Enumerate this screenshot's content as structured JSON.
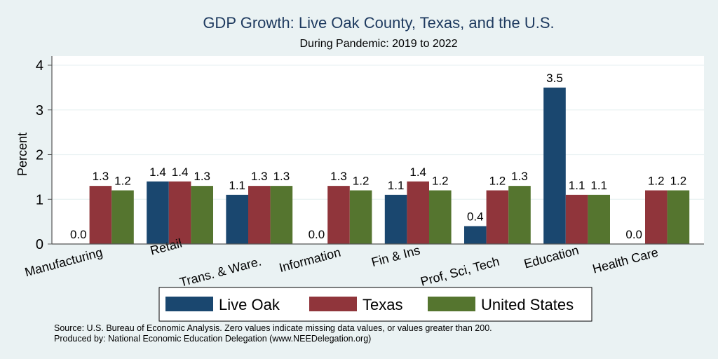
{
  "chart_data": {
    "type": "bar",
    "title": "GDP Growth: Live Oak County, Texas, and the U.S.",
    "subtitle": "During Pandemic: 2019 to 2022",
    "ylabel": "Percent",
    "ylim": [
      0,
      4.2
    ],
    "yticks": [
      0,
      1,
      2,
      3,
      4
    ],
    "grid": true,
    "legend_position": "bottom",
    "categories": [
      "Manufacturing",
      "Retail",
      "Trans. & Ware.",
      "Information",
      "Fin & Ins",
      "Prof, Sci, Tech",
      "Education",
      "Health Care"
    ],
    "series": [
      {
        "name": "Live Oak",
        "color": "#1a476f",
        "values": [
          0.0,
          1.4,
          1.1,
          0.0,
          1.1,
          0.4,
          3.5,
          0.0
        ]
      },
      {
        "name": "Texas",
        "color": "#90353b",
        "values": [
          1.3,
          1.4,
          1.3,
          1.3,
          1.4,
          1.2,
          1.1,
          1.2
        ]
      },
      {
        "name": "United States",
        "color": "#55752f",
        "values": [
          1.2,
          1.3,
          1.3,
          1.2,
          1.2,
          1.3,
          1.1,
          1.2
        ]
      }
    ]
  },
  "footer": {
    "source": "Source: U.S. Bureau of Economic Analysis. Zero values indicate missing data values, or values greater than 200.",
    "produced": "Produced by: National Economic Education Delegation (www.NEEDelegation.org)"
  }
}
